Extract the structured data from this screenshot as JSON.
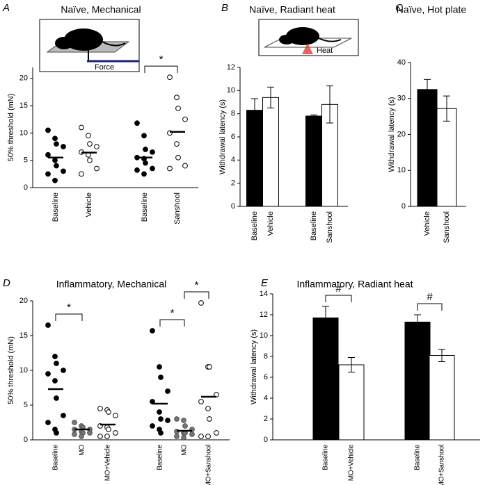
{
  "chart_data": [
    {
      "type": "dot",
      "panel": "A",
      "title": "Naïve, Mechanical",
      "ylabel": "50% threshold (mN)",
      "inset_label": "Force",
      "ylim": [
        0,
        22
      ],
      "yticks": [
        0,
        5,
        10,
        15,
        20
      ],
      "groups": [
        {
          "name": "Baseline",
          "fill": "#000000",
          "stroke": "#000000",
          "values": [
            10.5,
            9,
            8,
            7.5,
            6,
            5,
            4,
            3,
            2.5,
            1.3
          ],
          "mean": 5.5
        },
        {
          "name": "Vehicle",
          "fill": "#ffffff",
          "stroke": "#000000",
          "values": [
            11,
            9.5,
            8,
            7.5,
            6.5,
            6,
            5,
            3.5,
            2.5
          ],
          "mean": 6.4
        },
        {
          "name": "Baseline",
          "fill": "#000000",
          "stroke": "#000000",
          "values": [
            11.8,
            9.5,
            7,
            6.5,
            5.5,
            5.3,
            4.5,
            3.5,
            3.2,
            2.5
          ],
          "mean": 5.5
        },
        {
          "name": "Sanshool",
          "fill": "#ffffff",
          "stroke": "#000000",
          "values": [
            20.2,
            16.5,
            14.5,
            12.5,
            10,
            8,
            5.5,
            4,
            3.5
          ],
          "mean": 10.2
        }
      ],
      "brackets": [
        {
          "from": 2,
          "to": 3,
          "label": "*"
        }
      ]
    },
    {
      "type": "bar",
      "panel": "B",
      "title": "Naïve, Radiant heat",
      "ylabel": "Withdrawal latency (s)",
      "inset_label": "Heat",
      "ylim": [
        0,
        12
      ],
      "yticks": [
        0,
        2,
        4,
        6,
        8,
        10,
        12
      ],
      "categories": [
        "Baseline",
        "Vehicle",
        "Baseline",
        "Sanshool"
      ],
      "values": [
        8.3,
        9.4,
        7.8,
        8.8
      ],
      "errors": [
        1.0,
        0.9,
        0.1,
        1.6
      ],
      "colors": [
        "#000000",
        "#ffffff",
        "#000000",
        "#ffffff"
      ]
    },
    {
      "type": "bar",
      "panel": "C",
      "title": "Naïve, Hot plate",
      "ylabel": "Withdrawal latency (s)",
      "ylim": [
        0,
        40
      ],
      "yticks": [
        0,
        10,
        20,
        30,
        40
      ],
      "categories": [
        "Vehicle",
        "Sanshool"
      ],
      "values": [
        32.5,
        27.2
      ],
      "errors": [
        2.8,
        3.5
      ],
      "colors": [
        "#000000",
        "#ffffff"
      ]
    },
    {
      "type": "dot",
      "panel": "D",
      "title": "Inflammatory, Mechanical",
      "ylabel": "50% threshold (mN)",
      "ylim": [
        0,
        20
      ],
      "yticks": [
        0,
        5,
        10,
        15,
        20
      ],
      "groups": [
        {
          "name": "Baseline",
          "fill": "#000000",
          "stroke": "#000000",
          "values": [
            16.5,
            12,
            11,
            10,
            9.5,
            8.5,
            6,
            3.5,
            2.5,
            1.5,
            1
          ],
          "mean": 7.3
        },
        {
          "name": "MO",
          "fill": "#777777",
          "stroke": "#555555",
          "values": [
            2.5,
            2,
            1.8,
            1.5,
            1.5,
            1.2,
            1,
            1,
            0.8,
            0.5
          ],
          "mean": 1.5
        },
        {
          "name": "MO+Vehicle",
          "fill": "#ffffff",
          "stroke": "#000000",
          "values": [
            4.5,
            4.3,
            4,
            3.5,
            2,
            1.8,
            1.5,
            1,
            0.5,
            0.5
          ],
          "mean": 2.2
        },
        {
          "name": "Baseline",
          "fill": "#000000",
          "stroke": "#000000",
          "values": [
            15.7,
            10.5,
            9,
            7,
            5.5,
            4,
            3,
            2.8,
            2,
            1.5,
            1
          ],
          "mean": 5.2
        },
        {
          "name": "MO",
          "fill": "#777777",
          "stroke": "#555555",
          "values": [
            3,
            2.8,
            2,
            1.5,
            1.2,
            1,
            1,
            0.8,
            0.5,
            0.3
          ],
          "mean": 1.3
        },
        {
          "name": "MO+Sanshool",
          "fill": "#ffffff",
          "stroke": "#000000",
          "values": [
            19.7,
            10.5,
            10.5,
            6.5,
            5.5,
            4.5,
            3,
            1,
            0.5,
            0.5
          ],
          "mean": 6.2
        }
      ],
      "brackets": [
        {
          "from": 0,
          "to": 1,
          "label": "*"
        },
        {
          "from": 3,
          "to": 4,
          "label": "*"
        },
        {
          "from": 4,
          "to": 5,
          "label": "*"
        }
      ]
    },
    {
      "type": "bar",
      "panel": "E",
      "title": "Inflammatory, Radiant heat",
      "ylabel": "Withdrawal latency (s)",
      "ylim": [
        0,
        14
      ],
      "yticks": [
        0,
        2,
        4,
        6,
        8,
        10,
        12,
        14
      ],
      "categories": [
        "Baseline",
        "MO+Vehicle",
        "Baseline",
        "MO+Sanshool"
      ],
      "values": [
        11.7,
        7.2,
        11.3,
        8.1
      ],
      "errors": [
        1.1,
        0.7,
        0.7,
        0.6
      ],
      "colors": [
        "#000000",
        "#ffffff",
        "#000000",
        "#ffffff"
      ],
      "brackets": [
        {
          "from": 0,
          "to": 1,
          "label": "#"
        },
        {
          "from": 2,
          "to": 3,
          "label": "#"
        }
      ]
    }
  ]
}
